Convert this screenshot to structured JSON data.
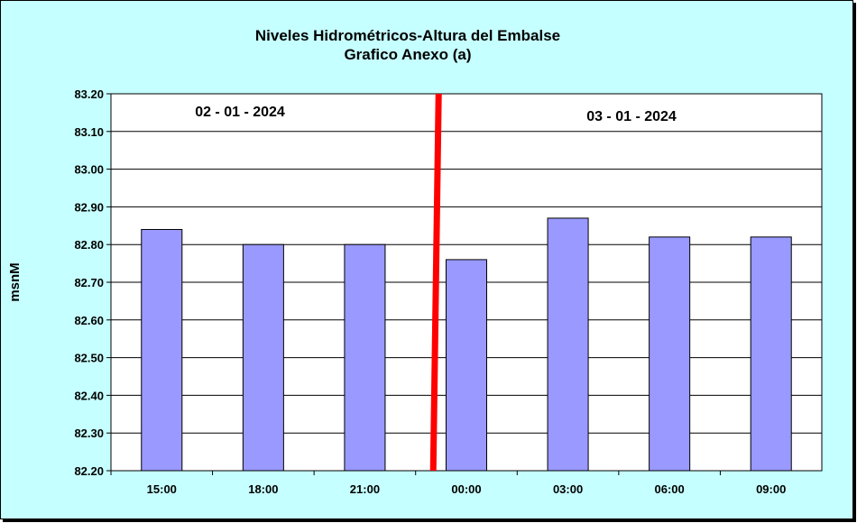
{
  "chart_data": {
    "type": "bar",
    "title": "Niveles Hidrométricos-Altura del Embalse",
    "subtitle": "Grafico Anexo (a)",
    "xlabel": "",
    "ylabel": "msnM",
    "categories": [
      "15:00",
      "18:00",
      "21:00",
      "00:00",
      "03:00",
      "06:00",
      "09:00"
    ],
    "values": [
      82.84,
      82.8,
      82.8,
      82.76,
      82.87,
      82.82,
      82.82
    ],
    "ylim": [
      82.2,
      83.2
    ],
    "yticks": [
      "82.20",
      "82.30",
      "82.40",
      "82.50",
      "82.60",
      "82.70",
      "82.80",
      "82.90",
      "83.00",
      "83.10",
      "83.20"
    ],
    "grid": true,
    "legend": "none",
    "annotations": [
      {
        "text": "02 - 01 - 2024"
      },
      {
        "text": "03 - 01 - 2024"
      }
    ],
    "divider_after_category": "21:00",
    "colors": {
      "background": "#c6ffff",
      "plot_area": "#ffffff",
      "bar_fill": "#9999ff",
      "bar_stroke": "#000000",
      "divider": "#ff0000",
      "grid": "#000000"
    }
  }
}
